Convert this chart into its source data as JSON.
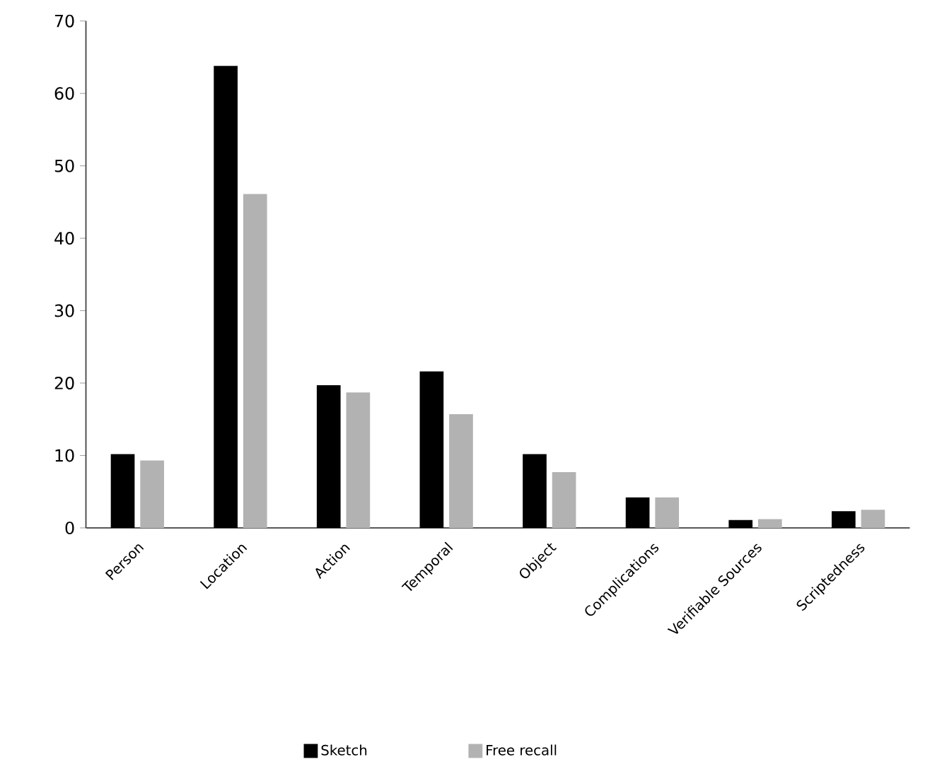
{
  "chart_data": {
    "type": "bar",
    "categories": [
      "Person",
      "Location",
      "Action",
      "Temporal",
      "Object",
      "Complications",
      "Verifiable Sources",
      "Scriptedness"
    ],
    "series": [
      {
        "name": "Sketch",
        "color": "#000000",
        "values": [
          10.2,
          63.8,
          19.7,
          21.6,
          10.2,
          4.2,
          1.1,
          2.3
        ]
      },
      {
        "name": "Free recall",
        "color": "#b2b2b2",
        "values": [
          9.3,
          46.1,
          18.7,
          15.7,
          7.7,
          4.2,
          1.2,
          2.5
        ]
      }
    ],
    "ylim": [
      0,
      70
    ],
    "yticks": [
      0,
      10,
      20,
      30,
      40,
      50,
      60,
      70
    ],
    "grid": false,
    "legend": "bottom"
  }
}
